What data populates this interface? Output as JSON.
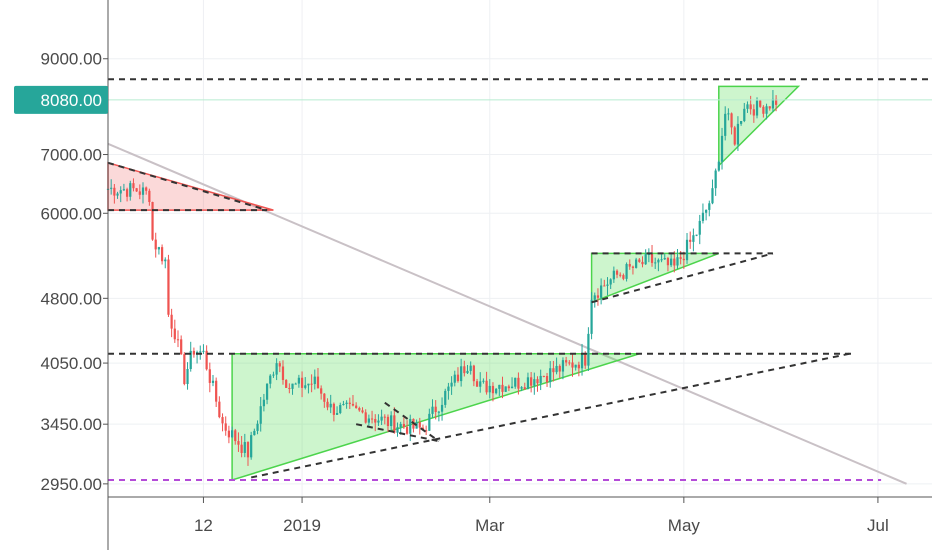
{
  "chart_data": {
    "type": "candlestick",
    "y_scale": "log",
    "ylim": [
      2850,
      10500
    ],
    "y_ticks": [
      {
        "value": 9000,
        "label": "9000.00"
      },
      {
        "value": 7000,
        "label": "7000.00"
      },
      {
        "value": 6000,
        "label": "6000.00"
      },
      {
        "value": 4800,
        "label": "4800.00"
      },
      {
        "value": 4050,
        "label": "4050.00"
      },
      {
        "value": 3450,
        "label": "3450.00"
      },
      {
        "value": 2950,
        "label": "2950.00"
      }
    ],
    "x_ticks": [
      {
        "date": "2018-12-01",
        "label": "12"
      },
      {
        "date": "2019-01-01",
        "label": "2019"
      },
      {
        "date": "2019-03-01",
        "label": "Mar"
      },
      {
        "date": "2019-05-01",
        "label": "May"
      },
      {
        "date": "2019-07-01",
        "label": "Jul"
      }
    ],
    "xlim": [
      "2018-11-01",
      "2019-07-18"
    ],
    "current_price": {
      "value": 8080,
      "label": "8080.00",
      "color": "#26a69a"
    },
    "up_color": "#26a69a",
    "down_color": "#ef5350",
    "close_path": [
      {
        "date": "2018-11-01",
        "value": 6400
      },
      {
        "date": "2018-11-10",
        "value": 6380
      },
      {
        "date": "2018-11-14",
        "value": 6300
      },
      {
        "date": "2018-11-15",
        "value": 5600
      },
      {
        "date": "2018-11-19",
        "value": 5300
      },
      {
        "date": "2018-11-20",
        "value": 4600
      },
      {
        "date": "2018-11-22",
        "value": 4400
      },
      {
        "date": "2018-11-25",
        "value": 3900
      },
      {
        "date": "2018-11-28",
        "value": 4200
      },
      {
        "date": "2018-12-01",
        "value": 4150
      },
      {
        "date": "2018-12-07",
        "value": 3450
      },
      {
        "date": "2018-12-15",
        "value": 3200
      },
      {
        "date": "2018-12-19",
        "value": 3600
      },
      {
        "date": "2018-12-24",
        "value": 4100
      },
      {
        "date": "2018-12-28",
        "value": 3800
      },
      {
        "date": "2019-01-05",
        "value": 3850
      },
      {
        "date": "2019-01-10",
        "value": 3600
      },
      {
        "date": "2019-01-20",
        "value": 3550
      },
      {
        "date": "2019-01-30",
        "value": 3450
      },
      {
        "date": "2019-02-08",
        "value": 3400
      },
      {
        "date": "2019-02-12",
        "value": 3600
      },
      {
        "date": "2019-02-23",
        "value": 4100
      },
      {
        "date": "2019-02-25",
        "value": 3800
      },
      {
        "date": "2019-03-10",
        "value": 3850
      },
      {
        "date": "2019-03-20",
        "value": 3950
      },
      {
        "date": "2019-03-31",
        "value": 4100
      },
      {
        "date": "2019-04-02",
        "value": 4850
      },
      {
        "date": "2019-04-10",
        "value": 5100
      },
      {
        "date": "2019-04-20",
        "value": 5300
      },
      {
        "date": "2019-04-28",
        "value": 5200
      },
      {
        "date": "2019-05-05",
        "value": 5700
      },
      {
        "date": "2019-05-10",
        "value": 6300
      },
      {
        "date": "2019-05-14",
        "value": 7800
      },
      {
        "date": "2019-05-17",
        "value": 7300
      },
      {
        "date": "2019-05-20",
        "value": 8000
      },
      {
        "date": "2019-05-24",
        "value": 7900
      },
      {
        "date": "2019-05-31",
        "value": 8100
      }
    ],
    "annotations": {
      "red_triangle": [
        [
          "2018-11-01",
          6850
        ],
        [
          "2018-11-01",
          6050
        ],
        [
          "2018-12-23",
          6050
        ]
      ],
      "green_triangle_big": [
        [
          "2018-12-10",
          4150
        ],
        [
          "2019-04-17",
          4150
        ],
        [
          "2018-12-10",
          2980
        ]
      ],
      "green_triangle_mid": [
        [
          "2019-04-02",
          5400
        ],
        [
          "2019-05-12",
          5400
        ],
        [
          "2019-04-02",
          4750
        ]
      ],
      "green_triangle_top": [
        [
          "2019-05-12",
          8370
        ],
        [
          "2019-06-06",
          8370
        ],
        [
          "2019-05-12",
          6800
        ]
      ],
      "dashed_lines": [
        {
          "from": [
            "2018-11-01",
            8530
          ],
          "to": [
            "2019-07-18",
            8530
          ],
          "color": "#333333"
        },
        {
          "from": [
            "2018-11-01",
            4150
          ],
          "to": [
            "2019-06-24",
            4150
          ],
          "color": "#333333"
        },
        {
          "from": [
            "2018-11-01",
            6050
          ],
          "to": [
            "2018-12-21",
            6050
          ],
          "color": "#333333"
        },
        {
          "from": [
            "2018-11-01",
            2980
          ],
          "to": [
            "2019-07-02",
            2980
          ],
          "color": "#b44bd8"
        },
        {
          "from": [
            "2018-11-01",
            6850
          ],
          "to": [
            "2018-12-21",
            6050
          ],
          "color": "#333333"
        },
        {
          "from": [
            "2018-12-16",
            3000
          ],
          "to": [
            "2019-06-22",
            4150
          ],
          "color": "#333333"
        },
        {
          "from": [
            "2019-04-02",
            4750
          ],
          "to": [
            "2019-05-29",
            5400
          ],
          "color": "#333333"
        },
        {
          "from": [
            "2019-04-02",
            5400
          ],
          "to": [
            "2019-05-29",
            5400
          ],
          "color": "#333333"
        },
        {
          "from": [
            "2019-01-27",
            3650
          ],
          "to": [
            "2019-02-13",
            3300
          ],
          "color": "#333333"
        },
        {
          "from": [
            "2019-01-18",
            3450
          ],
          "to": [
            "2019-02-13",
            3300
          ],
          "color": "#333333"
        }
      ],
      "grey_trendline": {
        "from": [
          "2018-11-01",
          7200
        ],
        "to": [
          "2019-07-10",
          2950
        ],
        "color": "#c9c1c6"
      }
    }
  }
}
